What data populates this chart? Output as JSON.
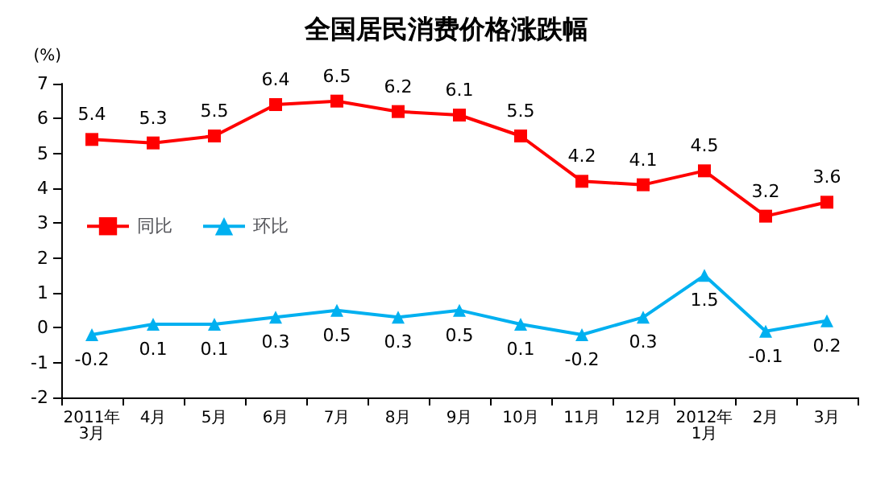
{
  "chart_data": {
    "type": "line",
    "title": "全国居民消费价格涨跌幅",
    "ylabel": "(%)",
    "categories": [
      "2011年\n3月",
      "4月",
      "5月",
      "6月",
      "7月",
      "8月",
      "9月",
      "10月",
      "11月",
      "12月",
      "2012年\n1月",
      "2月",
      "3月"
    ],
    "series": [
      {
        "name": "同比",
        "color": "#ff0000",
        "marker": "square",
        "values": [
          5.4,
          5.3,
          5.5,
          6.4,
          6.5,
          6.2,
          6.1,
          5.5,
          4.2,
          4.1,
          4.5,
          3.2,
          3.6
        ]
      },
      {
        "name": "环比",
        "color": "#00b0f0",
        "marker": "triangle",
        "values": [
          -0.2,
          0.1,
          0.1,
          0.3,
          0.5,
          0.3,
          0.5,
          0.1,
          -0.2,
          0.3,
          1.5,
          -0.1,
          0.2
        ]
      }
    ],
    "ylim": [
      -2,
      7
    ],
    "yticks": [
      -2,
      -1,
      0,
      1,
      2,
      3,
      4,
      5,
      6,
      7
    ],
    "grid": false,
    "legend": "left",
    "data_labels": true,
    "line_style": "solid"
  }
}
